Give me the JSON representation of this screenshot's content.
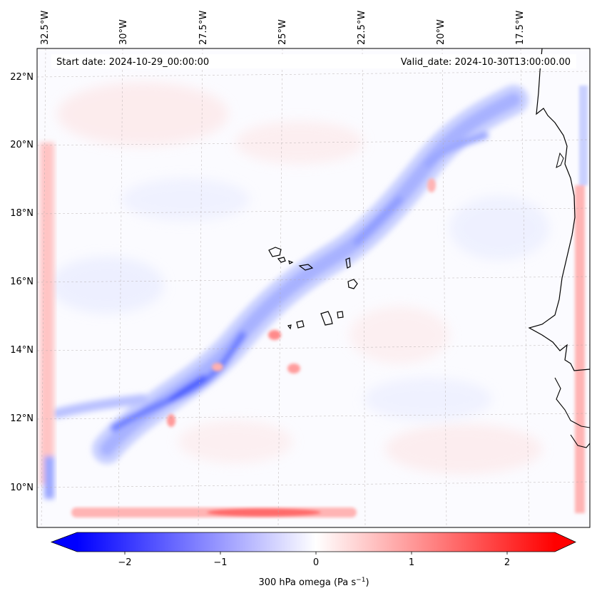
{
  "header": {
    "start_date": "Start date: 2024-10-29_00:00:00",
    "valid_date": "Valid_date: 2024-10-30T13:00:00.00"
  },
  "longitude_labels": [
    "32.5°W",
    "30°W",
    "27.5°W",
    "25°W",
    "22.5°W",
    "20°W",
    "17.5°W"
  ],
  "latitude_labels": [
    "22°N",
    "20°N",
    "18°N",
    "16°N",
    "14°N",
    "12°N",
    "10°N"
  ],
  "colorbar": {
    "ticks": [
      "−2",
      "−1",
      "0",
      "1",
      "2"
    ],
    "tick_values": [
      -2,
      -1,
      0,
      1,
      2
    ],
    "range": [
      -2.5,
      2.5
    ],
    "label": "300 hPa omega (Pa s",
    "label_sup": "−1",
    "label_end": ")",
    "colormap": "bwr",
    "low_color": "#0000ff",
    "mid_color": "#ffffff",
    "high_color": "#ff0000"
  }
}
